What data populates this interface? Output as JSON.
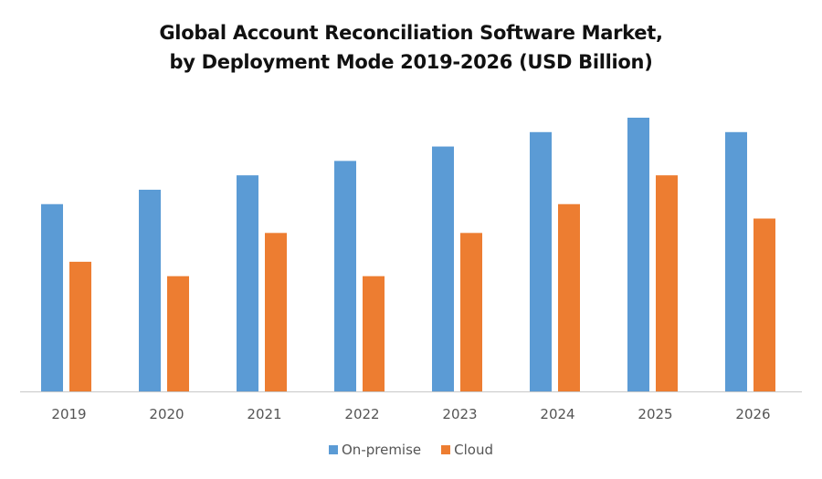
{
  "chart_data": {
    "type": "bar",
    "title_line1": "Global Account Reconciliation Software Market,",
    "title_line2": "by Deployment Mode 2019-2026 (USD Billion)",
    "xlabel": "",
    "ylabel": "",
    "categories": [
      "2019",
      "2020",
      "2021",
      "2022",
      "2023",
      "2024",
      "2025",
      "2026"
    ],
    "series": [
      {
        "name": "On-premise",
        "color": "#5B9BD5",
        "values": [
          13,
          14,
          15,
          16,
          17,
          18,
          19,
          18
        ]
      },
      {
        "name": "Cloud",
        "color": "#ED7D31",
        "values": [
          9,
          8,
          11,
          8,
          11,
          13,
          15,
          12
        ]
      }
    ],
    "ylim": [
      0,
      19
    ],
    "grid": false,
    "legend_position": "bottom"
  }
}
